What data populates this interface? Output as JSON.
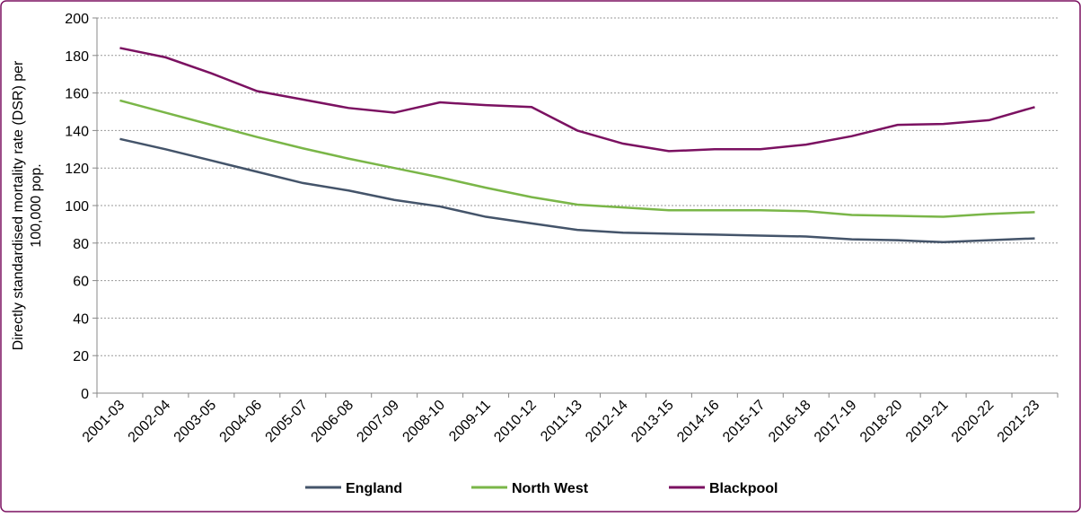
{
  "chart_data": {
    "type": "line",
    "y_label": "Directly standardised mortality rate (DSR) per 100,000 pop.",
    "categories": [
      "2001-03",
      "2002-04",
      "2003-05",
      "2004-06",
      "2005-07",
      "2006-08",
      "2007-09",
      "2008-10",
      "2009-11",
      "2010-12",
      "2011-13",
      "2012-14",
      "2013-15",
      "2014-16",
      "2015-17",
      "2016-18",
      "2017-19",
      "2018-20",
      "2019-21",
      "2020-22",
      "2021-23"
    ],
    "series": [
      {
        "name": "England",
        "color": "#44546a",
        "values": [
          135.5,
          130,
          124,
          118,
          112,
          108,
          103,
          99.5,
          94,
          90.5,
          87,
          85.5,
          85,
          84.5,
          84,
          83.5,
          82,
          81.5,
          80.5,
          81.5,
          82.5
        ]
      },
      {
        "name": "North West",
        "color": "#7ab648",
        "values": [
          156,
          149.5,
          143,
          136.5,
          130.5,
          125,
          120,
          115,
          109.5,
          104.5,
          100.5,
          99,
          97.5,
          97.5,
          97.5,
          97,
          95,
          94.5,
          94,
          95.5,
          96.5
        ]
      },
      {
        "name": "Blackpool",
        "color": "#7b1161",
        "values": [
          184,
          179,
          170.5,
          161,
          156.5,
          152,
          149.5,
          155,
          153.5,
          152.5,
          140,
          133,
          129,
          130,
          130,
          132.5,
          137,
          143,
          143.5,
          145.5,
          152.5
        ]
      }
    ],
    "ylim": [
      0,
      200
    ],
    "yticks": [
      0,
      20,
      40,
      60,
      80,
      100,
      120,
      140,
      160,
      180,
      200
    ],
    "grid": true,
    "legend": "bottom"
  }
}
